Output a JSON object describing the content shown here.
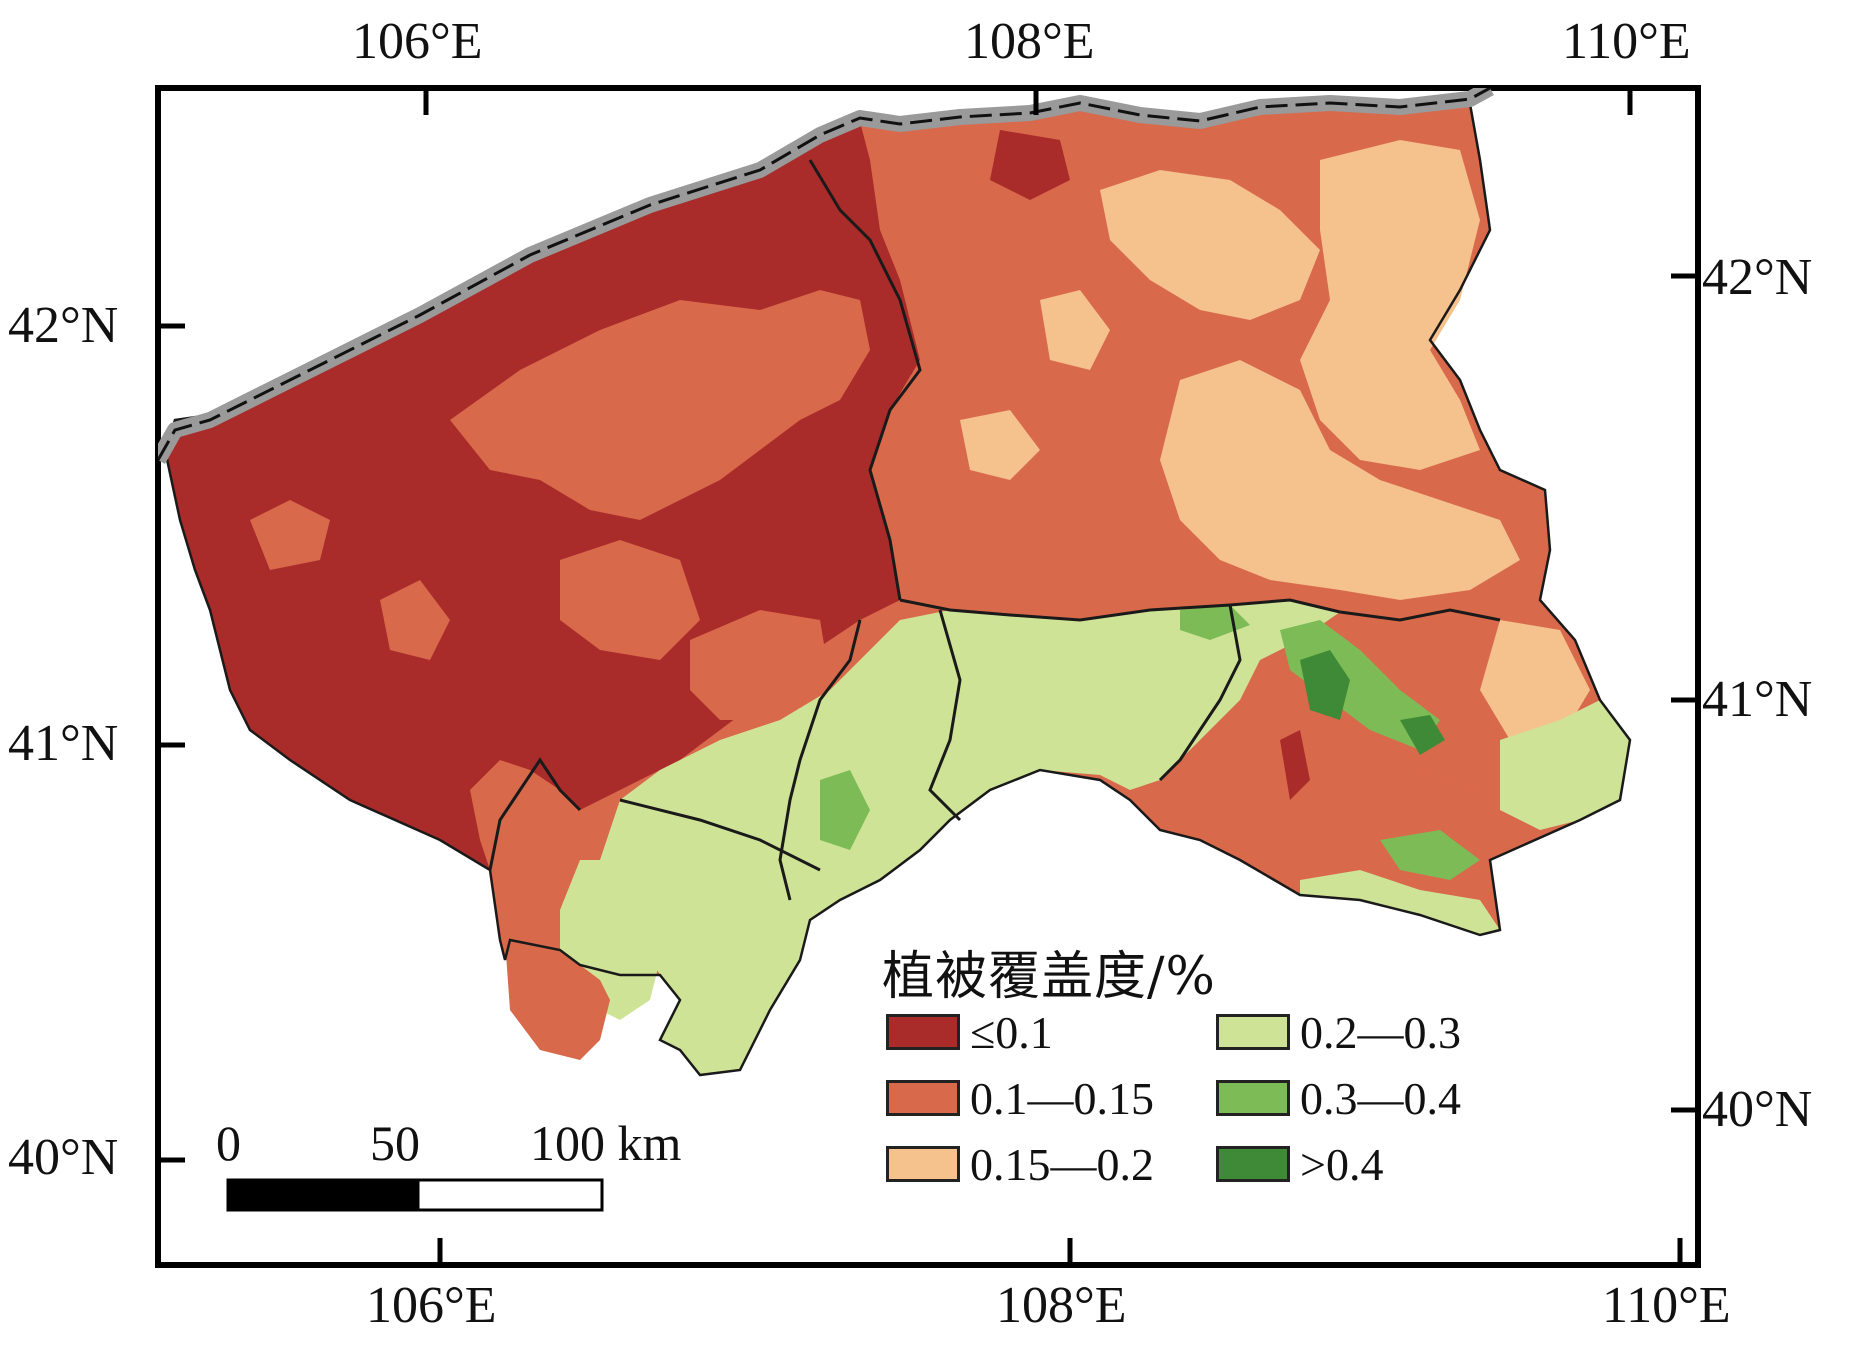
{
  "axes": {
    "top_x_ticks": [
      "106°E",
      "108°E",
      "110°E"
    ],
    "bottom_x_ticks": [
      "106°E",
      "108°E",
      "110°E"
    ],
    "left_y_ticks": [
      "42°N",
      "41°N",
      "40°N"
    ],
    "right_y_ticks": [
      "42°N",
      "41°N",
      "40°N"
    ]
  },
  "legend": {
    "title": "植被覆盖度/%",
    "items": [
      {
        "label": "≤0.1",
        "color": "#a92b2a"
      },
      {
        "label": "0.1—0.15",
        "color": "#d9694b"
      },
      {
        "label": "0.15—0.2",
        "color": "#f5c18c"
      },
      {
        "label": "0.2—0.3",
        "color": "#cfe396"
      },
      {
        "label": "0.3—0.4",
        "color": "#7cbb56"
      },
      {
        "label": ">0.4",
        "color": "#3f8a36"
      }
    ]
  },
  "scale_bar": {
    "labels": [
      "0",
      "50",
      "100 km"
    ]
  },
  "colors": {
    "border_gray": "#9a9a9a",
    "boundary_line": "#1a1a1a"
  }
}
